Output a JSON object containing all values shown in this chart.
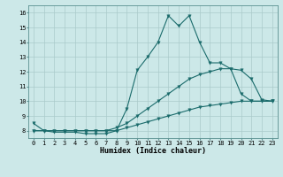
{
  "xlabel": "Humidex (Indice chaleur)",
  "bg_color": "#cce8e8",
  "grid_color": "#aacaca",
  "line_color": "#1a6b6b",
  "xlim": [
    -0.5,
    23.5
  ],
  "ylim": [
    7.5,
    16.5
  ],
  "xticks": [
    0,
    1,
    2,
    3,
    4,
    5,
    6,
    7,
    8,
    9,
    10,
    11,
    12,
    13,
    14,
    15,
    16,
    17,
    18,
    19,
    20,
    21,
    22,
    23
  ],
  "yticks": [
    8,
    9,
    10,
    11,
    12,
    13,
    14,
    15,
    16
  ],
  "line1_x": [
    0,
    1,
    2,
    3,
    4,
    5,
    6,
    7,
    8,
    9,
    10,
    11,
    12,
    13,
    14,
    15,
    16,
    17,
    18,
    19,
    20,
    21,
    22,
    23
  ],
  "line1_y": [
    8.5,
    8.0,
    7.9,
    7.9,
    7.9,
    7.8,
    7.8,
    7.8,
    8.0,
    9.5,
    12.1,
    13.0,
    14.0,
    15.8,
    15.1,
    15.8,
    14.0,
    12.6,
    12.6,
    12.2,
    10.5,
    10.0,
    10.0,
    10.0
  ],
  "line2_x": [
    0,
    1,
    2,
    3,
    4,
    5,
    6,
    7,
    8,
    9,
    10,
    11,
    12,
    13,
    14,
    15,
    16,
    17,
    18,
    19,
    20,
    21,
    22,
    23
  ],
  "line2_y": [
    8.0,
    8.0,
    8.0,
    8.0,
    8.0,
    8.0,
    8.0,
    8.0,
    8.2,
    8.5,
    9.0,
    9.5,
    10.0,
    10.5,
    11.0,
    11.5,
    11.8,
    12.0,
    12.2,
    12.2,
    12.1,
    11.5,
    10.1,
    10.0
  ],
  "line3_x": [
    0,
    1,
    2,
    3,
    4,
    5,
    6,
    7,
    8,
    9,
    10,
    11,
    12,
    13,
    14,
    15,
    16,
    17,
    18,
    19,
    20,
    21,
    22,
    23
  ],
  "line3_y": [
    8.0,
    8.0,
    8.0,
    8.0,
    8.0,
    8.0,
    8.0,
    8.0,
    8.0,
    8.2,
    8.4,
    8.6,
    8.8,
    9.0,
    9.2,
    9.4,
    9.6,
    9.7,
    9.8,
    9.9,
    10.0,
    10.0,
    10.0,
    10.0
  ],
  "tick_fontsize": 5.0,
  "xlabel_fontsize": 6.0,
  "marker_size": 2.5,
  "linewidth": 0.8
}
